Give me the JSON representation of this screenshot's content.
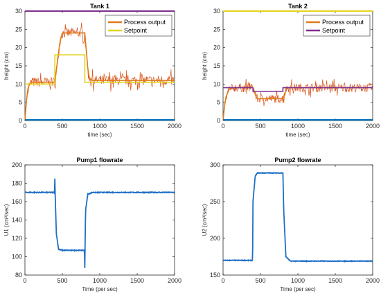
{
  "colors": {
    "process": "#e07b1a",
    "noise": "#d9541a",
    "setpoint_yellow": "#e3d41c",
    "setpoint_purple": "#7e2f8e",
    "blue_line": "#0072bd",
    "flow_line": "#1f6fc6",
    "border": "#262626"
  },
  "chart_data": [
    {
      "type": "line",
      "title": "Tank 1",
      "xlabel": "time (sec)",
      "ylabel": "height (cm)",
      "xlim": [
        0,
        2000
      ],
      "ylim": [
        0,
        30
      ],
      "xticks": [
        "0",
        "500",
        "1000",
        "1500",
        "2000"
      ],
      "yticks": [
        "0",
        "5",
        "10",
        "15",
        "20",
        "25",
        "30"
      ],
      "legend": {
        "position": "top-right",
        "entries": [
          "Process output",
          "Setpoint"
        ]
      },
      "series": [
        {
          "name": "Process output",
          "role": "process",
          "x": [
            0,
            30,
            60,
            100,
            400,
            470,
            500,
            800,
            850,
            900,
            2000
          ],
          "y": [
            0,
            8,
            10,
            10.5,
            10.5,
            22,
            24,
            24,
            12,
            11,
            11
          ],
          "noise": 1.4
        },
        {
          "name": "Setpoint",
          "role": "setpoint",
          "x": [
            0,
            400,
            400,
            800,
            800,
            2000
          ],
          "y": [
            10,
            10,
            18,
            18,
            10.5,
            10.5
          ]
        },
        {
          "role": "extra-top",
          "x": [
            0,
            2000
          ],
          "y": [
            30,
            30
          ]
        },
        {
          "role": "extra-bottom",
          "x": [
            0,
            2000
          ],
          "y": [
            0.2,
            0.2
          ]
        }
      ]
    },
    {
      "type": "line",
      "title": "Tank 2",
      "xlabel": "time (sec)",
      "ylabel": "height (cm)",
      "xlim": [
        0,
        2000
      ],
      "ylim": [
        0,
        30
      ],
      "xticks": [
        "0",
        "500",
        "1000",
        "1500",
        "2000"
      ],
      "yticks": [
        "0",
        "5",
        "10",
        "15",
        "20",
        "25",
        "30"
      ],
      "legend": {
        "position": "top-right",
        "entries": [
          "Process output",
          "Setpoint"
        ]
      },
      "series": [
        {
          "name": "Process output",
          "role": "process",
          "x": [
            0,
            30,
            80,
            150,
            400,
            450,
            800,
            850,
            2000
          ],
          "y": [
            0,
            6,
            8.5,
            9,
            9,
            6,
            6,
            9,
            9
          ],
          "noise": 1.2
        },
        {
          "name": "Setpoint",
          "role": "setpoint",
          "x": [
            0,
            400,
            400,
            800,
            800,
            2000
          ],
          "y": [
            9,
            9,
            8,
            8,
            9,
            9
          ]
        },
        {
          "role": "extra-top",
          "x": [
            0,
            2000
          ],
          "y": [
            30,
            30
          ]
        },
        {
          "role": "extra-bottom",
          "x": [
            0,
            2000
          ],
          "y": [
            0.2,
            0.2
          ]
        }
      ]
    },
    {
      "type": "line",
      "title": "Pump1 flowrate",
      "xlabel": "Time (per sec)",
      "ylabel": "U1 (cm³/sec)",
      "xlim": [
        0,
        2000
      ],
      "ylim": [
        80,
        200
      ],
      "xticks": [
        "0",
        "500",
        "1000",
        "1500",
        "2000"
      ],
      "yticks": [
        "80",
        "100",
        "120",
        "140",
        "160",
        "180",
        "200"
      ],
      "series": [
        {
          "role": "flow",
          "x": [
            0,
            395,
            400,
            405,
            420,
            450,
            500,
            600,
            795,
            800,
            810,
            840,
            900,
            2000
          ],
          "y": [
            170,
            170,
            185,
            165,
            125,
            108,
            107,
            107,
            107,
            88,
            150,
            168,
            170,
            170
          ],
          "noise": 0.4
        }
      ]
    },
    {
      "type": "line",
      "title": "Pump2 flowrate",
      "xlabel": "Time (per sec)",
      "ylabel": "U2 (cm³/sec)",
      "xlim": [
        0,
        2000
      ],
      "ylim": [
        150,
        300
      ],
      "xticks": [
        "0",
        "500",
        "1000",
        "1500",
        "2000"
      ],
      "yticks": [
        "150",
        "200",
        "250",
        "300"
      ],
      "series": [
        {
          "role": "flow",
          "x": [
            0,
            395,
            400,
            430,
            460,
            800,
            810,
            840,
            900,
            2000
          ],
          "y": [
            170,
            170,
            250,
            285,
            289,
            289,
            240,
            175,
            169,
            169
          ],
          "noise": 0.4
        }
      ]
    }
  ]
}
